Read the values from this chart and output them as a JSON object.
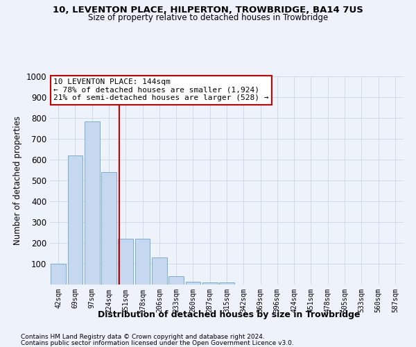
{
  "title1": "10, LEVENTON PLACE, HILPERTON, TROWBRIDGE, BA14 7US",
  "title2": "Size of property relative to detached houses in Trowbridge",
  "xlabel": "Distribution of detached houses by size in Trowbridge",
  "ylabel": "Number of detached properties",
  "categories": [
    "42sqm",
    "69sqm",
    "97sqm",
    "124sqm",
    "151sqm",
    "178sqm",
    "206sqm",
    "233sqm",
    "260sqm",
    "287sqm",
    "315sqm",
    "342sqm",
    "369sqm",
    "396sqm",
    "424sqm",
    "451sqm",
    "478sqm",
    "505sqm",
    "533sqm",
    "560sqm",
    "587sqm"
  ],
  "values": [
    100,
    620,
    785,
    540,
    220,
    220,
    130,
    40,
    15,
    10,
    10,
    0,
    0,
    0,
    0,
    0,
    0,
    0,
    0,
    0,
    0
  ],
  "bar_color": "#c5d8f0",
  "bar_edge_color": "#7aadd4",
  "reference_line_x": 3.62,
  "reference_line_color": "#cc0000",
  "annotation_box_text": "10 LEVENTON PLACE: 144sqm\n← 78% of detached houses are smaller (1,924)\n21% of semi-detached houses are larger (528) →",
  "annotation_box_color": "#cc0000",
  "annotation_box_fill": "#ffffff",
  "footnote1": "Contains HM Land Registry data © Crown copyright and database right 2024.",
  "footnote2": "Contains public sector information licensed under the Open Government Licence v3.0.",
  "ylim": [
    0,
    1000
  ],
  "yticks": [
    0,
    100,
    200,
    300,
    400,
    500,
    600,
    700,
    800,
    900,
    1000
  ],
  "grid_color": "#d0daea",
  "bg_color": "#eef2fa"
}
